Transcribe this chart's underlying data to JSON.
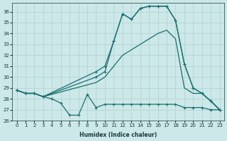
{
  "xlabel": "Humidex (Indice chaleur)",
  "background_color": "#cce8e8",
  "grid_color": "#b0d0d0",
  "line_color": "#1a6e6e",
  "xlim": [
    -0.5,
    23.5
  ],
  "ylim": [
    26,
    36.8
  ],
  "yticks": [
    26,
    27,
    28,
    29,
    30,
    31,
    32,
    33,
    34,
    35,
    36
  ],
  "xticks": [
    0,
    1,
    2,
    3,
    4,
    5,
    6,
    7,
    8,
    9,
    10,
    11,
    12,
    13,
    14,
    15,
    16,
    17,
    18,
    19,
    20,
    21,
    22,
    23
  ],
  "lines": [
    {
      "x": [
        0,
        1,
        2,
        3,
        4,
        5,
        6,
        7,
        8,
        9,
        10,
        11,
        12,
        13,
        14,
        15,
        16,
        17,
        18,
        19,
        20,
        21,
        22,
        23
      ],
      "y": [
        28.8,
        28.5,
        28.5,
        28.2,
        28.0,
        27.6,
        26.5,
        26.5,
        28.4,
        27.2,
        27.5,
        27.5,
        27.5,
        27.5,
        27.5,
        27.5,
        27.5,
        27.5,
        27.5,
        27.2,
        27.2,
        27.2,
        27.0,
        27.0
      ],
      "marker": true,
      "lw": 0.9
    },
    {
      "x": [
        0,
        1,
        2,
        3,
        9,
        10,
        11,
        12,
        13,
        14,
        15,
        16,
        17,
        18,
        19,
        20,
        21,
        22,
        23
      ],
      "y": [
        28.8,
        28.5,
        28.5,
        28.2,
        29.5,
        30.0,
        31.0,
        32.0,
        32.5,
        33.0,
        33.5,
        34.0,
        34.3,
        33.5,
        29.0,
        28.5,
        28.5,
        27.8,
        27.0
      ],
      "marker": false,
      "lw": 0.9
    },
    {
      "x": [
        0,
        1,
        2,
        3,
        9,
        10,
        11,
        12,
        13,
        14,
        15,
        16,
        17,
        18,
        19,
        20,
        21,
        22,
        23
      ],
      "y": [
        28.8,
        28.5,
        28.5,
        28.2,
        30.5,
        31.0,
        33.3,
        35.8,
        35.3,
        36.3,
        36.5,
        36.5,
        36.5,
        35.2,
        31.2,
        29.0,
        28.5,
        27.8,
        27.0
      ],
      "marker": true,
      "lw": 0.9
    },
    {
      "x": [
        0,
        1,
        2,
        3,
        9,
        10,
        11,
        12,
        13,
        14,
        15,
        16,
        17,
        18,
        19,
        20,
        21,
        22,
        23
      ],
      "y": [
        28.8,
        28.5,
        28.5,
        28.2,
        30.0,
        30.5,
        33.3,
        35.8,
        35.3,
        36.3,
        36.5,
        36.5,
        36.5,
        35.2,
        31.2,
        29.0,
        28.5,
        27.8,
        27.0
      ],
      "marker": true,
      "lw": 0.9
    }
  ]
}
